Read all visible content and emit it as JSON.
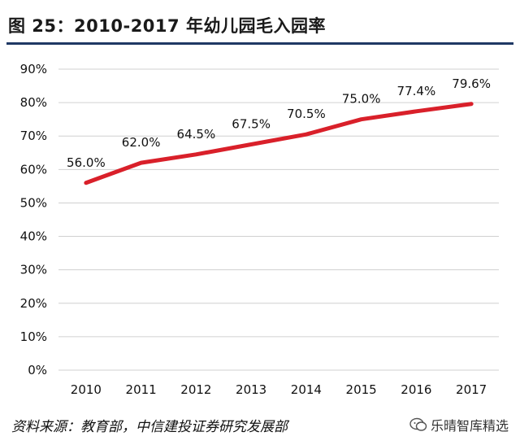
{
  "header": {
    "title": "图  25：2010-2017 年幼儿园毛入园率"
  },
  "footer": {
    "source": "资料来源：教育部，中信建投证券研究发展部",
    "watermark": "乐晴智库精选"
  },
  "colors": {
    "line": "#d9202a",
    "rule": "#1f3864",
    "grid": "#d0d0d0"
  },
  "chart_data": {
    "type": "line",
    "title": "2010-2017 年幼儿园毛入园率",
    "categories": [
      "2010",
      "2011",
      "2012",
      "2013",
      "2014",
      "2015",
      "2016",
      "2017"
    ],
    "values": [
      56.0,
      62.0,
      64.5,
      67.5,
      70.5,
      75.0,
      77.4,
      79.6
    ],
    "data_labels": [
      "56.0%",
      "62.0%",
      "64.5%",
      "67.5%",
      "70.5%",
      "75.0%",
      "77.4%",
      "79.6%"
    ],
    "ylim": [
      0,
      90
    ],
    "yticks": [
      "0%",
      "10%",
      "20%",
      "30%",
      "40%",
      "50%",
      "60%",
      "70%",
      "80%",
      "90%"
    ],
    "grid": true,
    "xlabel": "",
    "ylabel": ""
  }
}
